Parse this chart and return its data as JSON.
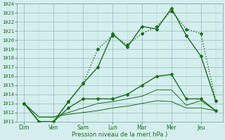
{
  "xlabel": "Pression niveau de la mer( hPa )",
  "days": [
    "Dim",
    "Ven",
    "Sam",
    "Lun",
    "Mar",
    "Mer",
    "Jeu"
  ],
  "ylim": [
    1011,
    1024
  ],
  "yticks": [
    1011,
    1012,
    1013,
    1014,
    1015,
    1016,
    1017,
    1018,
    1019,
    1020,
    1021,
    1022,
    1023,
    1024
  ],
  "line1": {
    "x": [
      0,
      0.5,
      1.0,
      1.5,
      2.0,
      2.5,
      3.0,
      3.5,
      4.0,
      4.5,
      5.0,
      5.5,
      6.0,
      6.5
    ],
    "y": [
      1013,
      1011,
      1011,
      1013.2,
      1015.2,
      1017.0,
      1020.7,
      1019.2,
      1021.5,
      1021.2,
      1023.5,
      1020.5,
      1018.2,
      1013.3
    ],
    "color": "#1a6e1a",
    "linewidth": 1.0,
    "marker": "D",
    "markersize": 2.0
  },
  "line2": {
    "x": [
      0,
      0.5,
      1.0,
      1.5,
      2.0,
      2.5,
      3.0,
      3.5,
      4.0,
      4.5,
      5.0,
      5.5,
      6.0,
      6.5
    ],
    "y": [
      1013,
      1011,
      1011,
      1013.2,
      1015.2,
      1019.0,
      1020.5,
      1019.5,
      1020.7,
      1021.5,
      1023.2,
      1021.2,
      1020.7,
      1013.3
    ],
    "color": "#1a6e1a",
    "linewidth": 1.0,
    "marker": "D",
    "markersize": 2.0,
    "linestyle": "dotted"
  },
  "line3": {
    "x": [
      0,
      0.5,
      1.0,
      1.5,
      2.0,
      2.5,
      3.0,
      3.5,
      4.0,
      4.5,
      5.0,
      5.5,
      6.0,
      6.5
    ],
    "y": [
      1013,
      1011,
      1011,
      1012.5,
      1013.5,
      1013.5,
      1013.5,
      1014.0,
      1015.0,
      1016.0,
      1016.2,
      1013.5,
      1013.5,
      1012.2
    ],
    "color": "#1a6e1a",
    "linewidth": 1.0,
    "marker": "D",
    "markersize": 2.0
  },
  "line4": {
    "x": [
      0,
      0.5,
      1.0,
      1.5,
      2.0,
      2.5,
      3.0,
      3.5,
      4.0,
      4.5,
      5.0,
      5.5,
      6.0,
      6.5
    ],
    "y": [
      1013,
      1011.5,
      1011.5,
      1012.0,
      1012.5,
      1013.0,
      1013.2,
      1013.5,
      1013.8,
      1014.5,
      1014.5,
      1012.8,
      1013.3,
      1012.2
    ],
    "color": "#1a6e1a",
    "linewidth": 0.7
  },
  "line5": {
    "x": [
      0,
      0.5,
      1.0,
      1.5,
      2.0,
      2.5,
      3.0,
      3.5,
      4.0,
      4.5,
      5.0,
      5.5,
      6.0,
      6.5
    ],
    "y": [
      1013,
      1011.5,
      1011.5,
      1011.8,
      1012.0,
      1012.2,
      1012.5,
      1012.7,
      1013.0,
      1013.3,
      1013.2,
      1012.5,
      1012.5,
      1012.2
    ],
    "color": "#1a6e1a",
    "linewidth": 0.7
  },
  "background_color": "#d4eeee",
  "grid_color": "#aacccc",
  "dark_grid_color": "#88aaaa",
  "text_color": "#1a6e1a",
  "tick_color": "#1a6e1a"
}
